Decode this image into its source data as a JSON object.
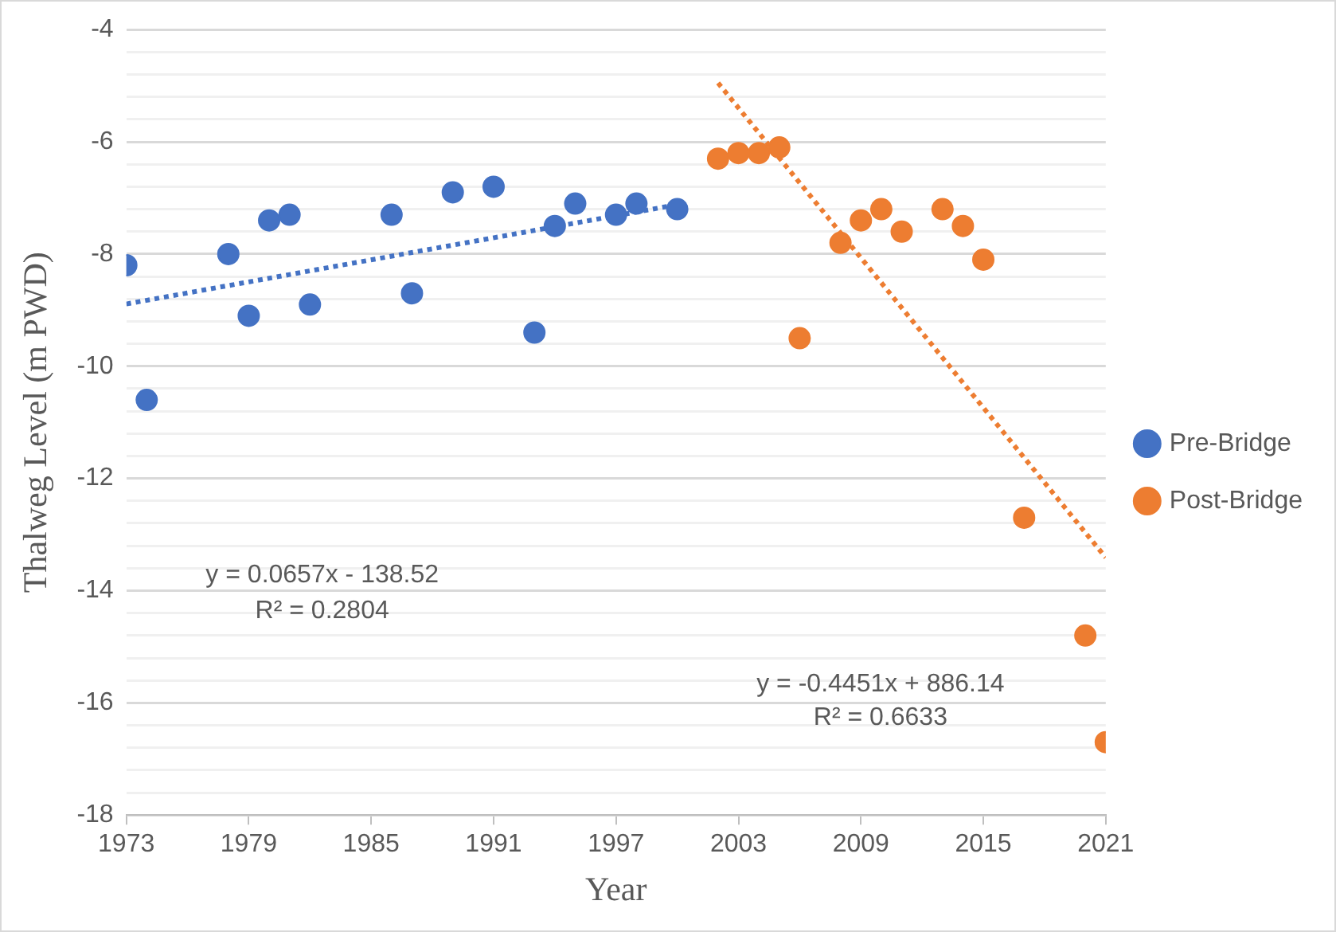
{
  "chart_data": {
    "type": "scatter",
    "xlabel": "Year",
    "ylabel": "Thalweg Level (m PWD)",
    "xlim": [
      1973,
      2021
    ],
    "xticks": [
      1973,
      1979,
      1985,
      1991,
      1997,
      2003,
      2009,
      2015,
      2021
    ],
    "ylim": [
      -18,
      -4
    ],
    "yticks": [
      -18,
      {
        "value": -17.6,
        "label": null
      },
      {
        "value": -17.2,
        "label": null
      },
      {
        "value": -16.8,
        "label": null
      },
      {
        "value": -16.4,
        "label": null
      },
      -16,
      {
        "value": -15.6,
        "label": null
      },
      {
        "value": -15.2,
        "label": null
      },
      {
        "value": -14.8,
        "label": null
      },
      {
        "value": -14.4,
        "label": null
      },
      -14,
      {
        "value": -13.6,
        "label": null
      },
      {
        "value": -13.2,
        "label": null
      },
      {
        "value": -12.8,
        "label": null
      },
      {
        "value": -12.4,
        "label": null
      },
      -12,
      {
        "value": -11.6,
        "label": null
      },
      {
        "value": -11.2,
        "label": null
      },
      {
        "value": -10.8,
        "label": null
      },
      {
        "value": -10.4,
        "label": null
      },
      -10,
      {
        "value": -9.6,
        "label": null
      },
      {
        "value": -9.2,
        "label": null
      },
      {
        "value": -8.8,
        "label": null
      },
      {
        "value": -8.4,
        "label": null
      },
      -8,
      {
        "value": -7.6,
        "label": null
      },
      {
        "value": -7.2,
        "label": null
      },
      {
        "value": -6.8,
        "label": null
      },
      {
        "value": -6.4,
        "label": null
      },
      -6,
      {
        "value": -5.6,
        "label": null
      },
      {
        "value": -5.2,
        "label": null
      },
      {
        "value": -4.8,
        "label": null
      },
      {
        "value": -4.4,
        "label": null
      },
      -4
    ],
    "grid": "y",
    "legend": "right",
    "marker": "circle",
    "series": [
      {
        "name": "Pre-Bridge",
        "color": "#4472c4",
        "x": [
          1973,
          1974,
          1978,
          1979,
          1980,
          1981,
          1982,
          1986,
          1987,
          1989,
          1991,
          1993,
          1994,
          1995,
          1997,
          1998,
          2000
        ],
        "values": [
          -8.2,
          -10.6,
          -8.0,
          -9.1,
          -7.4,
          -7.3,
          -8.9,
          -7.3,
          -8.7,
          -6.9,
          -6.8,
          -9.4,
          -7.5,
          -7.1,
          -7.3,
          -7.1,
          -7.2
        ]
      },
      {
        "name": "Post-Bridge",
        "color": "#ed7d31",
        "x": [
          2002,
          2003,
          2004,
          2005,
          2006,
          2008,
          2009,
          2010,
          2011,
          2013,
          2014,
          2015,
          2017,
          2020,
          2021
        ],
        "values": [
          -6.3,
          -6.2,
          -6.2,
          -6.1,
          -9.5,
          -7.8,
          -7.4,
          -7.2,
          -7.6,
          -7.2,
          -7.5,
          -8.1,
          -12.7,
          -14.8,
          -16.7
        ]
      },
      {
        "type": "line",
        "line_style": "dotted",
        "marker": "none",
        "color": "#4472c4",
        "x": [
          1973,
          2000
        ],
        "values": [
          -8.89,
          -7.12
        ]
      },
      {
        "type": "line",
        "line_style": "dotted",
        "marker": "none",
        "color": "#ed7d31",
        "x": [
          2002,
          2021
        ],
        "values": [
          -4.95,
          -13.41
        ]
      }
    ],
    "annotations": [
      "y = 0.0657x - 138.52",
      "R² = 0.2804",
      "y = -0.4451x + 886.14",
      "R² = 0.6633"
    ]
  }
}
